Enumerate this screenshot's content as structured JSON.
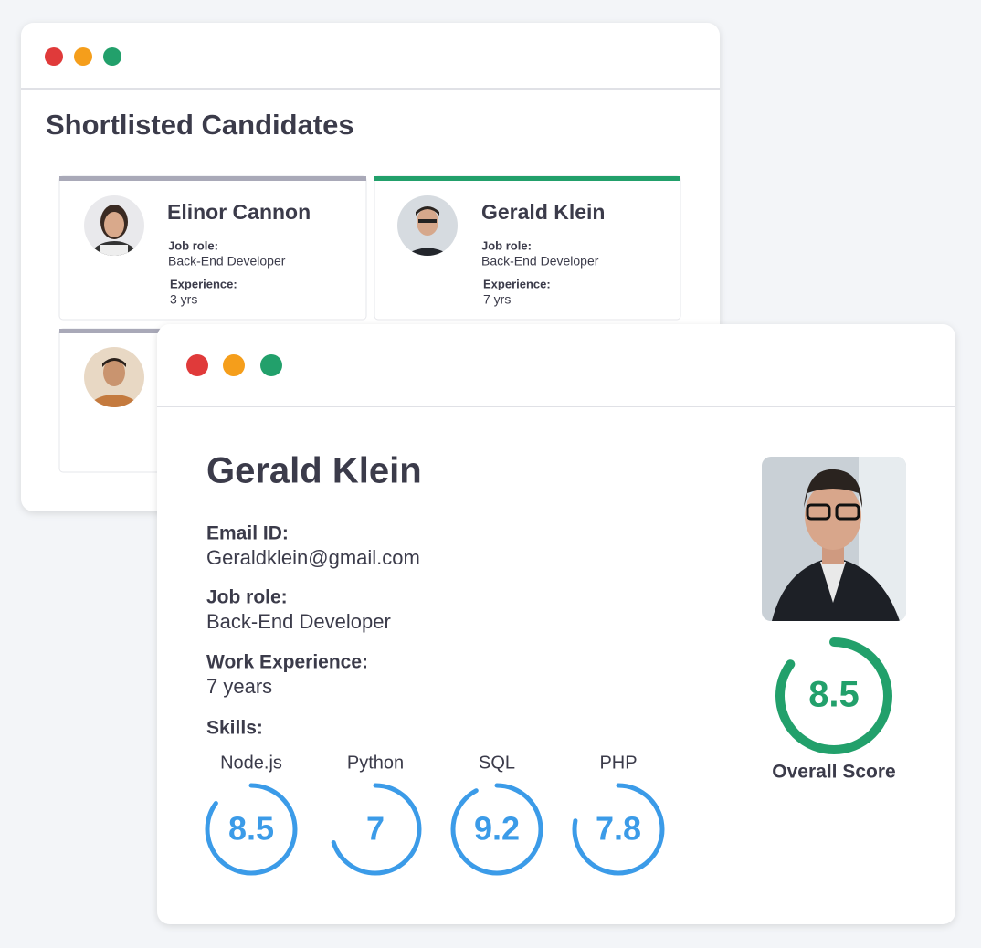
{
  "shortlist": {
    "title": "Shortlisted Candidates",
    "cards": [
      {
        "name": "Elinor Cannon",
        "job_role_label": "Job role:",
        "job_role": "Back-End Developer",
        "experience_label": "Experience:",
        "experience": "3 yrs"
      },
      {
        "name": "Gerald Klein",
        "job_role_label": "Job role:",
        "job_role": "Back-End Developer",
        "experience_label": "Experience:",
        "experience": "7 yrs"
      }
    ]
  },
  "profile": {
    "name": "Gerald Klein",
    "fields": [
      {
        "label": "Email ID:",
        "value": "Geraldklein@gmail.com"
      },
      {
        "label": "Job role:",
        "value": "Back-End Developer"
      },
      {
        "label": "Work Experience:",
        "value": "7 years"
      }
    ],
    "skills_label": "Skills:",
    "skills": [
      {
        "name": "Node.js",
        "score": 8.5
      },
      {
        "name": "Python",
        "score": 7
      },
      {
        "name": "SQL",
        "score": 9.2
      },
      {
        "name": "PHP",
        "score": 7.8
      }
    ],
    "overall": {
      "score": 8.5,
      "label": "Overall Score"
    }
  }
}
